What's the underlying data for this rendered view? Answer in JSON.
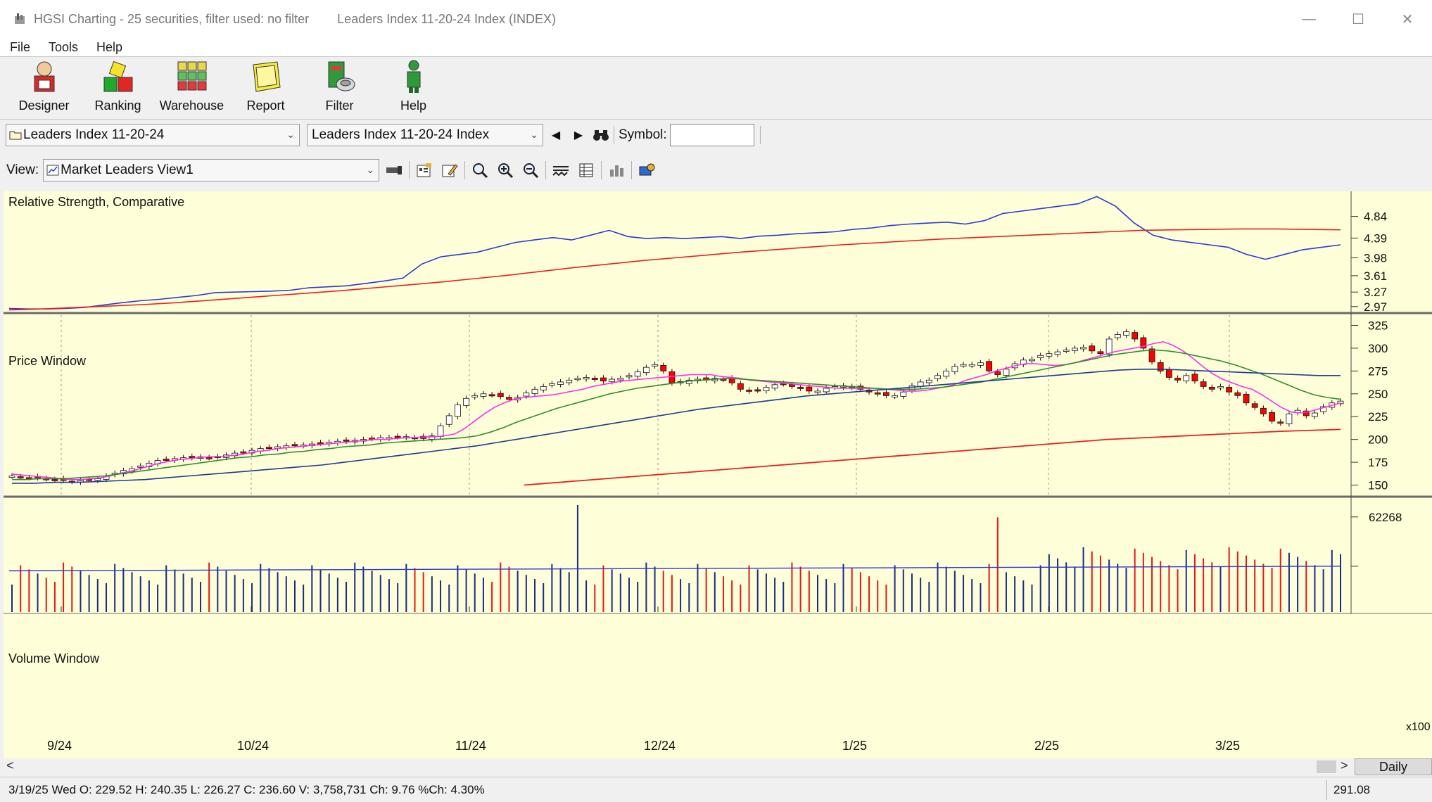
{
  "window": {
    "title": "HGSI Charting - 25 securities, filter used: no filter",
    "title_secondary": "Leaders Index 11-20-24 Index (INDEX)"
  },
  "menu": [
    "File",
    "Tools",
    "Help"
  ],
  "toolbar": {
    "designer": "Designer",
    "ranking": "Ranking",
    "warehouse": "Warehouse",
    "report": "Report",
    "filter": "Filter",
    "help": "Help"
  },
  "selectors": {
    "list_value": "Leaders Index 11-20-24",
    "security_value": "Leaders Index 11-20-24 Index",
    "symbol_label": "Symbol:",
    "symbol_value": ""
  },
  "view": {
    "label": "View:",
    "value": "Market Leaders View1"
  },
  "panes": {
    "rs_title": "Relative Strength, Comparative",
    "price_title": "Price Window",
    "volume_title": "Volume Window"
  },
  "rs_axis": [
    "4.84",
    "4.39",
    "3.98",
    "3.61",
    "3.27",
    "2.97"
  ],
  "price_axis": [
    "325",
    "300",
    "275",
    "250",
    "225",
    "200",
    "175",
    "150"
  ],
  "volume_axis": {
    "top": "62268",
    "unit": "x100"
  },
  "date_labels": [
    "9/24",
    "10/24",
    "11/24",
    "12/24",
    "1/25",
    "2/25",
    "3/25"
  ],
  "scroll": {
    "left_arrow": "<",
    "right_arrow": ">",
    "period": "Daily"
  },
  "status": {
    "text": "3/19/25 Wed O: 229.52 H: 240.35 L: 226.27 C: 236.60 V: 3,758,731 Ch: 9.76 %Ch: 4.30%",
    "price": "291.08"
  },
  "colors": {
    "chart_bg": "#fefed8",
    "up_candle": "#ffffff",
    "down_candle": "#ff0000",
    "rs_line": "#2a3ad6",
    "rs_ma": "#e82020",
    "ma_short": "#ff2ef0",
    "ma_mid": "#2f8f2f",
    "ma_long": "#1a3d8f",
    "ma_200": "#e82020"
  },
  "chart_data": {
    "type": "candlestick",
    "price_ylim": [
      145,
      330
    ],
    "closes": [
      160,
      159,
      158,
      158,
      157,
      156,
      155,
      154,
      155,
      156,
      157,
      160,
      163,
      166,
      168,
      171,
      174,
      177,
      178,
      179,
      180,
      180,
      181,
      180,
      181,
      183,
      185,
      186,
      188,
      190,
      191,
      192,
      193,
      194,
      194,
      195,
      196,
      197,
      198,
      198,
      199,
      200,
      201,
      202,
      202,
      203,
      203,
      202,
      201,
      204,
      215,
      226,
      238,
      245,
      248,
      250,
      249,
      247,
      244,
      246,
      251,
      255,
      258,
      261,
      263,
      265,
      267,
      268,
      266,
      264,
      266,
      267,
      270,
      274,
      279,
      282,
      275,
      262,
      262,
      265,
      266,
      265,
      267,
      266,
      262,
      255,
      253,
      254,
      257,
      260,
      261,
      258,
      256,
      253,
      253,
      256,
      258,
      259,
      257,
      255,
      252,
      250,
      248,
      248,
      252,
      259,
      263,
      265,
      270,
      275,
      280,
      282,
      282,
      284,
      275,
      271,
      277,
      283,
      287,
      288,
      292,
      294,
      296,
      298,
      300,
      301,
      297,
      294,
      310,
      315,
      318,
      310,
      300,
      285,
      275,
      268,
      265,
      270,
      264,
      258,
      255,
      258,
      252,
      248,
      240,
      235,
      228,
      220,
      218,
      228,
      232,
      226,
      229,
      236,
      240,
      242
    ],
    "ma_short": [
      162,
      161,
      160,
      159,
      158,
      157,
      156,
      156,
      157,
      158,
      160,
      163,
      165,
      168,
      171,
      174,
      176,
      178,
      179,
      180,
      181,
      181,
      182,
      183,
      185,
      187,
      188,
      190,
      191,
      192,
      193,
      194,
      195,
      196,
      197,
      198,
      199,
      200,
      200,
      201,
      202,
      202,
      203,
      203,
      204,
      206,
      212,
      220,
      228,
      235,
      240,
      244,
      246,
      247,
      248,
      249,
      251,
      253,
      255,
      258,
      260,
      262,
      264,
      265,
      266,
      267,
      268,
      269,
      270,
      271,
      271,
      271,
      269,
      268,
      267,
      265,
      264,
      263,
      262,
      261,
      260,
      259,
      258,
      257,
      256,
      256,
      256,
      256,
      256,
      255,
      254,
      253,
      253,
      254,
      256,
      258,
      261,
      265,
      268,
      271,
      275,
      278,
      281,
      283,
      283,
      282,
      281,
      282,
      284,
      287,
      290,
      293,
      296,
      298,
      300,
      302,
      305,
      307,
      303,
      297,
      289,
      280,
      272,
      266,
      262,
      258,
      255,
      249,
      242,
      235,
      230,
      229,
      231,
      234,
      237,
      240
    ],
    "ma_mid": [
      156,
      156,
      157,
      157,
      157,
      158,
      159,
      160,
      162,
      164,
      166,
      168,
      170,
      172,
      174,
      176,
      178,
      180,
      181,
      183,
      184,
      186,
      187,
      189,
      190,
      192,
      193,
      194,
      196,
      197,
      198,
      199,
      200,
      201,
      202,
      204,
      208,
      213,
      219,
      224,
      229,
      234,
      238,
      242,
      246,
      250,
      253,
      256,
      258,
      260,
      262,
      264,
      265,
      266,
      267,
      266,
      265,
      264,
      263,
      262,
      261,
      260,
      259,
      258,
      257,
      256,
      255,
      255,
      255,
      256,
      257,
      259,
      261,
      263,
      266,
      269,
      272,
      275,
      278,
      281,
      284,
      287,
      290,
      293,
      295,
      297,
      298,
      297,
      295,
      292,
      289,
      286,
      282,
      277,
      272,
      266,
      260,
      254,
      249,
      246,
      244
    ],
    "ma_long": [
      152,
      152,
      153,
      153,
      154,
      155,
      156,
      158,
      160,
      162,
      164,
      166,
      168,
      170,
      172,
      175,
      178,
      181,
      184,
      187,
      190,
      193,
      197,
      201,
      205,
      209,
      213,
      217,
      221,
      225,
      229,
      233,
      236,
      239,
      242,
      245,
      248,
      250,
      252,
      254,
      256,
      258,
      260,
      262,
      264,
      266,
      268,
      270,
      272,
      274,
      276,
      277,
      277,
      276,
      275,
      274,
      273,
      272,
      271,
      270,
      270
    ],
    "ma_200": [
      150,
      155,
      160,
      165,
      170,
      175,
      180,
      185,
      190,
      195,
      200,
      203,
      206,
      209,
      211
    ],
    "rs": [
      2.93,
      2.92,
      2.92,
      2.93,
      2.95,
      3.0,
      3.05,
      3.09,
      3.12,
      3.16,
      3.2,
      3.26,
      3.27,
      3.28,
      3.29,
      3.31,
      3.36,
      3.38,
      3.4,
      3.45,
      3.5,
      3.56,
      3.85,
      4.0,
      4.05,
      4.1,
      4.2,
      4.3,
      4.35,
      4.4,
      4.35,
      4.45,
      4.55,
      4.42,
      4.38,
      4.4,
      4.38,
      4.4,
      4.42,
      4.38,
      4.43,
      4.45,
      4.48,
      4.5,
      4.52,
      4.57,
      4.6,
      4.65,
      4.68,
      4.7,
      4.72,
      4.68,
      4.75,
      4.9,
      4.95,
      5.0,
      5.05,
      5.1,
      5.25,
      5.05,
      4.7,
      4.45,
      4.35,
      4.3,
      4.25,
      4.2,
      4.05,
      3.95,
      4.05,
      4.15,
      4.2,
      4.25
    ],
    "rs_ma": [
      2.9,
      2.92,
      2.95,
      2.98,
      3.01,
      3.05,
      3.1,
      3.15,
      3.2,
      3.25,
      3.3,
      3.36,
      3.42,
      3.48,
      3.55,
      3.62,
      3.7,
      3.78,
      3.85,
      3.92,
      3.98,
      4.04,
      4.1,
      4.15,
      4.2,
      4.25,
      4.29,
      4.33,
      4.37,
      4.4,
      4.43,
      4.46,
      4.49,
      4.52,
      4.55,
      4.56,
      4.57,
      4.58,
      4.58,
      4.57,
      4.56
    ],
    "volume_ylim": [
      0,
      70000
    ]
  }
}
